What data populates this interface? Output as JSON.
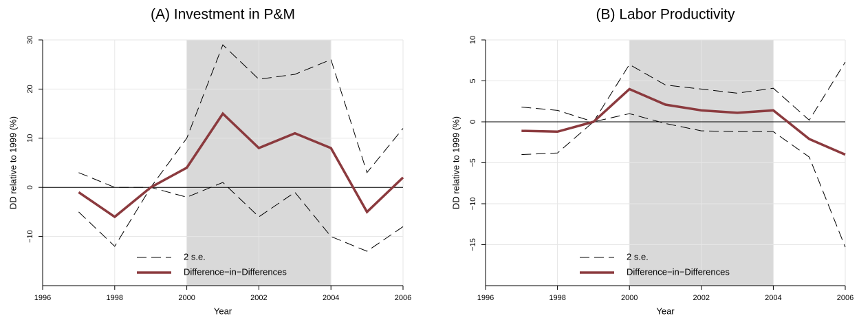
{
  "chart_data": [
    {
      "type": "line",
      "title": "(A) Investment in P&M",
      "x_label": "Year",
      "y_label": "DD relative to 1999 (%)",
      "x": [
        1997,
        1998,
        1999,
        2000,
        2001,
        2002,
        2003,
        2004,
        2005,
        2006
      ],
      "series": [
        {
          "name": "2 s.e.",
          "color": "#000000",
          "style": "dashed",
          "upper": [
            3,
            0,
            0,
            10,
            29,
            22,
            23,
            26,
            3,
            12
          ],
          "lower": [
            -5,
            -12,
            0,
            -2,
            1,
            -6,
            -1,
            -10,
            -13,
            -8
          ]
        },
        {
          "name": "Difference−in−Differences",
          "color": "#8b3a3e",
          "style": "solid",
          "values": [
            -1,
            -6,
            0,
            4,
            15,
            8,
            11,
            8,
            -5,
            2
          ]
        }
      ],
      "xlim": [
        1996,
        2006
      ],
      "xticks": [
        1996,
        1998,
        2000,
        2002,
        2004,
        2006
      ],
      "ylim": [
        -20,
        30
      ],
      "yticks": [
        {
          "value": -10,
          "label": "−10"
        },
        0,
        10,
        20,
        30
      ],
      "shade": [
        2000,
        2004
      ],
      "hline": 0,
      "grid": true
    },
    {
      "type": "line",
      "title": "(B) Labor Productivity",
      "x_label": "Year",
      "y_label": "DD relative to 1999 (%)",
      "x": [
        1997,
        1998,
        1999,
        2000,
        2001,
        2002,
        2003,
        2004,
        2005,
        2006
      ],
      "series": [
        {
          "name": "2 s.e.",
          "color": "#000000",
          "style": "dashed",
          "upper": [
            1.8,
            1.4,
            0,
            7.0,
            4.5,
            4.0,
            3.5,
            4.1,
            0.2,
            7.3
          ],
          "lower": [
            -4.0,
            -3.8,
            0,
            1.0,
            -0.2,
            -1.1,
            -1.2,
            -1.2,
            -4.3,
            -15.3
          ]
        },
        {
          "name": "Difference−in−Differences",
          "color": "#8b3a3e",
          "style": "solid",
          "values": [
            -1.1,
            -1.2,
            0,
            4.0,
            2.1,
            1.4,
            1.1,
            1.4,
            -2.1,
            -4.0
          ]
        }
      ],
      "xlim": [
        1996,
        2006
      ],
      "xticks": [
        1996,
        1998,
        2000,
        2002,
        2004,
        2006
      ],
      "ylim": [
        -20,
        10
      ],
      "yticks": [
        {
          "value": -15,
          "label": "−15"
        },
        {
          "value": -10,
          "label": "−10"
        },
        {
          "value": -5,
          "label": "−5"
        },
        0,
        5,
        10
      ],
      "shade": [
        2000,
        2004
      ],
      "hline": 0,
      "grid": true
    }
  ]
}
